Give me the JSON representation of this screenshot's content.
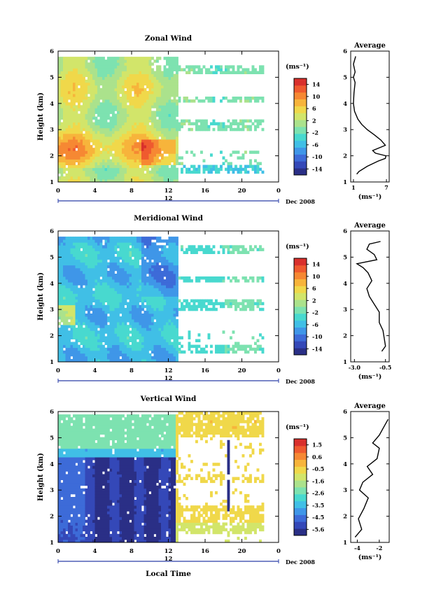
{
  "date_label": "Dec 2008",
  "day_label": "12",
  "xlabel": "Local Time",
  "unit": "(ms⁻¹)",
  "chart_data": [
    {
      "type": "heatmap",
      "title": "Zonal Wind",
      "ylabel": "Height (km)",
      "xlim": [
        0,
        24
      ],
      "ylim": [
        1,
        6
      ],
      "x_ticks": [
        "0",
        "4",
        "8",
        "12",
        "16",
        "20",
        "0"
      ],
      "y_ticks": [
        "1",
        "2",
        "3",
        "4",
        "5",
        "6"
      ],
      "colorbar": {
        "ticks": [
          "14",
          "10",
          "6",
          "2",
          "-2",
          "-6",
          "-10",
          "-14"
        ],
        "range": [
          -14,
          14
        ]
      },
      "avg": {
        "title": "Average",
        "xlabel": "(ms⁻¹)",
        "x_ticks": [
          "1",
          "7"
        ],
        "xlim": [
          0.5,
          7.5
        ],
        "y_ticks": [
          "1",
          "2",
          "3",
          "4",
          "5",
          "6"
        ],
        "profile": [
          [
            1.6,
            1.3
          ],
          [
            2.0,
            1.4
          ],
          [
            3.5,
            1.6
          ],
          [
            5.5,
            1.8
          ],
          [
            6.8,
            1.9
          ],
          [
            6.9,
            2.0
          ],
          [
            5.0,
            2.1
          ],
          [
            4.5,
            2.2
          ],
          [
            6.8,
            2.4
          ],
          [
            6.0,
            2.6
          ],
          [
            4.8,
            2.8
          ],
          [
            3.5,
            3.0
          ],
          [
            2.5,
            3.2
          ],
          [
            1.8,
            3.4
          ],
          [
            1.2,
            3.7
          ],
          [
            1.0,
            4.0
          ],
          [
            1.1,
            4.4
          ],
          [
            1.3,
            4.8
          ],
          [
            1.0,
            5.0
          ],
          [
            1.3,
            5.2
          ],
          [
            1.0,
            5.5
          ],
          [
            1.4,
            5.8
          ]
        ]
      }
    },
    {
      "type": "heatmap",
      "title": "Meridional Wind",
      "ylabel": "Height (km)",
      "xlim": [
        0,
        24
      ],
      "ylim": [
        1,
        6
      ],
      "x_ticks": [
        "0",
        "4",
        "8",
        "12",
        "16",
        "20",
        "0"
      ],
      "y_ticks": [
        "1",
        "2",
        "3",
        "4",
        "5",
        "6"
      ],
      "colorbar": {
        "ticks": [
          "14",
          "10",
          "6",
          "2",
          "-2",
          "-6",
          "-10",
          "-14"
        ],
        "range": [
          -14,
          14
        ]
      },
      "avg": {
        "title": "Average",
        "xlabel": "(ms⁻¹)",
        "x_ticks": [
          "-3.0",
          "-0.5"
        ],
        "xlim": [
          -3.3,
          -0.2
        ],
        "y_ticks": [
          "1",
          "2",
          "3",
          "4",
          "5",
          "6"
        ],
        "profile": [
          [
            -0.8,
            1.4
          ],
          [
            -0.5,
            1.6
          ],
          [
            -0.6,
            1.9
          ],
          [
            -0.7,
            2.2
          ],
          [
            -1.0,
            2.5
          ],
          [
            -1.0,
            2.9
          ],
          [
            -1.4,
            3.2
          ],
          [
            -1.8,
            3.5
          ],
          [
            -2.0,
            3.8
          ],
          [
            -1.6,
            4.1
          ],
          [
            -1.9,
            4.4
          ],
          [
            -2.3,
            4.6
          ],
          [
            -2.8,
            4.75
          ],
          [
            -1.2,
            4.9
          ],
          [
            -1.4,
            5.1
          ],
          [
            -2.0,
            5.3
          ],
          [
            -1.8,
            5.5
          ],
          [
            -0.9,
            5.6
          ]
        ]
      }
    },
    {
      "type": "heatmap",
      "title": "Vertical Wind",
      "ylabel": "Height (km)",
      "xlim": [
        0,
        24
      ],
      "ylim": [
        1,
        6
      ],
      "x_ticks": [
        "0",
        "4",
        "8",
        "12",
        "16",
        "20",
        "0"
      ],
      "y_ticks": [
        "1",
        "2",
        "3",
        "4",
        "5",
        "6"
      ],
      "colorbar": {
        "ticks": [
          "1.5",
          "0.6",
          "-0.5",
          "-1.6",
          "-2.6",
          "-3.5",
          "-4.5",
          "-5.6"
        ],
        "range": [
          -6,
          2
        ]
      },
      "avg": {
        "title": "Average",
        "xlabel": "(ms⁻¹)",
        "x_ticks": [
          "-4",
          "-2"
        ],
        "xlim": [
          -4.6,
          -1.1
        ],
        "y_ticks": [
          "1",
          "2",
          "3",
          "4",
          "5",
          "6"
        ],
        "profile": [
          [
            -4.2,
            1.2
          ],
          [
            -3.6,
            1.5
          ],
          [
            -3.9,
            1.9
          ],
          [
            -3.4,
            2.3
          ],
          [
            -3.0,
            2.7
          ],
          [
            -3.8,
            3.0
          ],
          [
            -3.5,
            3.3
          ],
          [
            -2.6,
            3.6
          ],
          [
            -3.1,
            3.9
          ],
          [
            -2.2,
            4.2
          ],
          [
            -2.0,
            4.6
          ],
          [
            -2.6,
            4.8
          ],
          [
            -2.0,
            5.1
          ],
          [
            -1.6,
            5.4
          ],
          [
            -1.2,
            5.7
          ]
        ]
      }
    }
  ]
}
